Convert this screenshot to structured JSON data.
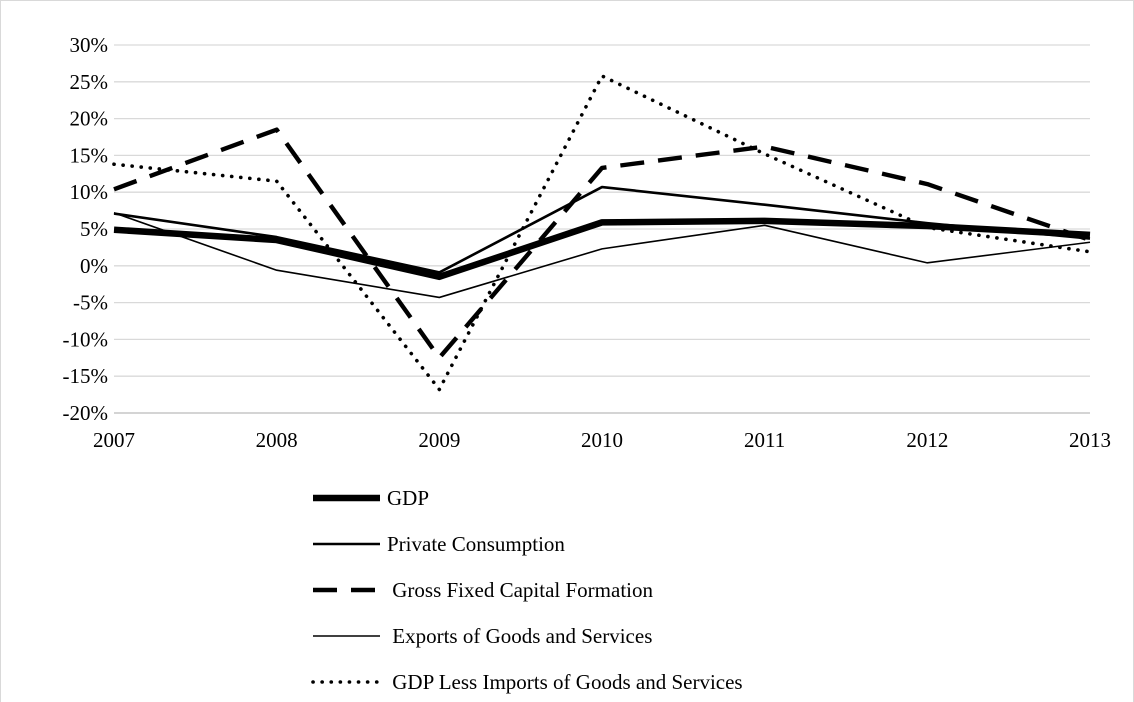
{
  "chart_data": {
    "type": "line",
    "title": "",
    "xlabel": "",
    "ylabel": "",
    "x": [
      "2007",
      "2008",
      "2009",
      "2010",
      "2011",
      "2012",
      "2013"
    ],
    "ylim": [
      -20,
      30
    ],
    "yticks": [
      -20,
      -15,
      -10,
      -5,
      0,
      5,
      10,
      15,
      20,
      25,
      30
    ],
    "ytick_labels": [
      "-20%",
      "-15%",
      "-10%",
      "-5%",
      "0%",
      "5%",
      "10%",
      "15%",
      "20%",
      "25%",
      "30%"
    ],
    "grid": true,
    "legend_position": "bottom",
    "series": [
      {
        "name": "GDP",
        "style": "thick-solid",
        "values": [
          4.9,
          3.5,
          -1.5,
          5.9,
          6.1,
          5.4,
          4.2
        ]
      },
      {
        "name": "Private Consumption",
        "style": "solid",
        "values": [
          7.1,
          3.9,
          -0.9,
          10.7,
          8.3,
          5.8,
          3.7
        ]
      },
      {
        "name": " Gross Fixed Capital Formation",
        "style": "dashed",
        "values": [
          10.4,
          18.5,
          -12.5,
          13.3,
          16.2,
          11.1,
          3.5
        ]
      },
      {
        "name": " Exports of Goods and Services",
        "style": "thin-solid",
        "values": [
          7.2,
          -0.6,
          -4.3,
          2.3,
          5.5,
          0.4,
          3.2
        ]
      },
      {
        "name": " GDP Less Imports of Goods and Services",
        "style": "dotted",
        "values": [
          13.8,
          11.5,
          -16.8,
          25.8,
          15.2,
          5.2,
          1.9
        ]
      }
    ]
  }
}
